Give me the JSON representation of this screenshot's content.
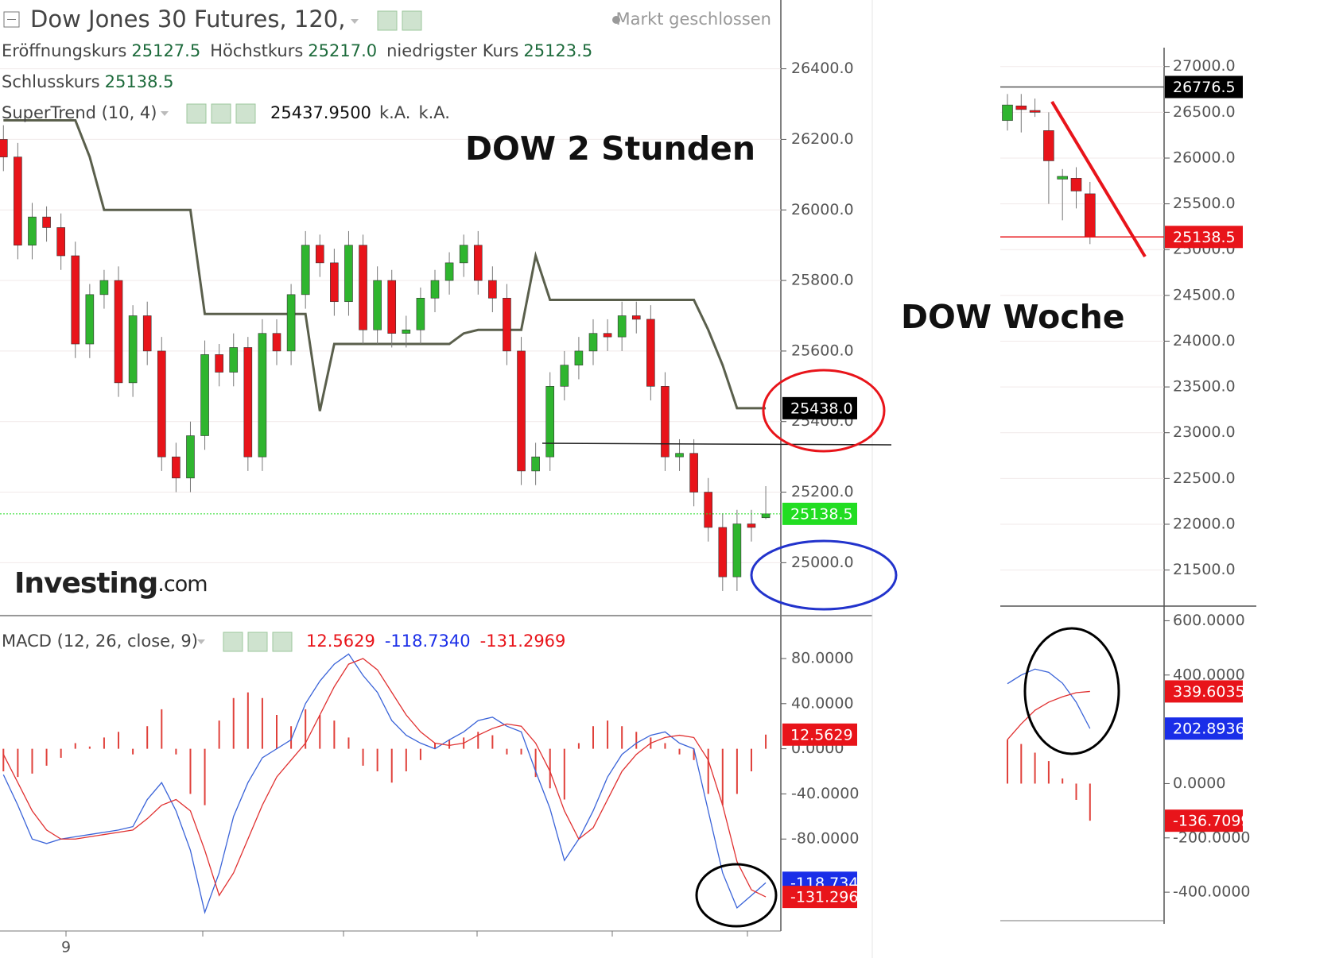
{
  "header": {
    "title": "Dow Jones 30 Futures, 120,",
    "status": "Markt geschlossen",
    "ohlc": [
      {
        "label": "Eröffnungskurs",
        "value": "25127.5"
      },
      {
        "label": "Höchstkurs",
        "value": "25217.0"
      },
      {
        "label": "niedrigster Kurs",
        "value": "25123.5"
      },
      {
        "label": "Schlusskurs",
        "value": "25138.5"
      }
    ],
    "logo": "Investing",
    "logo_suffix": ".com"
  },
  "annotations": [
    "DOW 2 Stunden",
    "DOW Woche"
  ],
  "chart_data": [
    {
      "type": "candlestick",
      "ylim": [
        24850,
        26595
      ],
      "grid": true,
      "up_color": "#2fb52f",
      "down_color": "#e8141a",
      "yticks": [
        {
          "value": 25000,
          "label": "25000.0"
        },
        {
          "value": 25200,
          "label": "25200.0"
        },
        {
          "value": 25400,
          "label": "25400.0"
        },
        {
          "value": 25600,
          "label": "25600.0"
        },
        {
          "value": 25800,
          "label": "25800.0"
        },
        {
          "value": 26000,
          "label": "26000.0"
        },
        {
          "value": 26200,
          "label": "26200.0"
        },
        {
          "value": 26400,
          "label": "26400.0"
        }
      ],
      "open": [
        26200,
        26150,
        25900,
        25980,
        25950,
        25870,
        25620,
        25760,
        25800,
        25510,
        25700,
        25600,
        25300,
        25240,
        25360,
        25590,
        25540,
        25610,
        25300,
        25650,
        25600,
        25760,
        25900,
        25850,
        25740,
        25900,
        25660,
        25800,
        25650,
        25660,
        25750,
        25800,
        25850,
        25900,
        25800,
        25750,
        25600,
        25260,
        25300,
        25500,
        25560,
        25600,
        25650,
        25640,
        25700,
        25690,
        25500,
        25300,
        25310,
        25200,
        25100,
        24960,
        25110,
        25127.5
      ],
      "high": [
        26240,
        26190,
        26020,
        26010,
        25990,
        25910,
        25790,
        25830,
        25840,
        25730,
        25740,
        25640,
        25340,
        25400,
        25630,
        25620,
        25650,
        25640,
        25690,
        25690,
        25790,
        25940,
        25930,
        25890,
        25940,
        25930,
        25840,
        25830,
        25700,
        25780,
        25830,
        25880,
        25930,
        25940,
        25840,
        25790,
        25640,
        25340,
        25540,
        25600,
        25640,
        25690,
        25690,
        25740,
        25740,
        25730,
        25540,
        25350,
        25350,
        25240,
        25140,
        25150,
        25150,
        25217
      ],
      "low": [
        26110,
        25860,
        25860,
        25910,
        25830,
        25580,
        25580,
        25720,
        25470,
        25470,
        25560,
        25260,
        25200,
        25200,
        25320,
        25500,
        25500,
        25260,
        25260,
        25560,
        25560,
        25720,
        25810,
        25700,
        25700,
        25620,
        25620,
        25610,
        25610,
        25620,
        25710,
        25760,
        25810,
        25760,
        25710,
        25560,
        25220,
        25220,
        25260,
        25460,
        25520,
        25560,
        25600,
        25600,
        25650,
        25460,
        25260,
        25260,
        25160,
        25060,
        24920,
        24920,
        25060,
        25123.5
      ],
      "close": [
        26150,
        25900,
        25980,
        25950,
        25870,
        25620,
        25760,
        25800,
        25510,
        25700,
        25600,
        25300,
        25240,
        25360,
        25590,
        25540,
        25610,
        25300,
        25650,
        25600,
        25760,
        25900,
        25850,
        25740,
        25900,
        25660,
        25800,
        25650,
        25660,
        25750,
        25800,
        25850,
        25900,
        25800,
        25750,
        25600,
        25260,
        25300,
        25500,
        25560,
        25600,
        25650,
        25640,
        25700,
        25690,
        25500,
        25300,
        25310,
        25200,
        25100,
        24960,
        25110,
        25100,
        25138.5
      ],
      "series": [
        {
          "name": "SuperTrend (10, 4)",
          "color": "#5a5f4c",
          "values": [
            26254,
            26254,
            26254,
            26254,
            26254,
            26254,
            26150,
            26000,
            26000,
            26000,
            26000,
            26000,
            26000,
            26000,
            25705,
            25705,
            25705,
            25705,
            25705,
            25705,
            25705,
            25705,
            25430,
            25620,
            25620,
            25620,
            25620,
            25620,
            25620,
            25620,
            25620,
            25620,
            25650,
            25660,
            25660,
            25660,
            25660,
            25870,
            25745,
            25745,
            25745,
            25745,
            25745,
            25745,
            25745,
            25745,
            25745,
            25745,
            25745,
            25660,
            25560,
            25438,
            25438,
            25438
          ]
        }
      ],
      "legend_values": [
        "25437.9500",
        "k.A.",
        "k.A."
      ],
      "flags": [
        {
          "value": 25438.0,
          "label": "25438.0",
          "color": "#000000"
        },
        {
          "value": 25138.5,
          "label": "25138.5",
          "color": "#22dd22",
          "line": "dotted"
        }
      ]
    },
    {
      "type": "macd",
      "ylim": [
        -161.5,
        116.6
      ],
      "grid": false,
      "hist_color": "#e0413b",
      "legend_title": "MACD (12, 26, close, 9)",
      "legend_values": [
        "12.5629",
        "-118.7340",
        "-131.2969"
      ],
      "yticks": [
        {
          "value": 80,
          "label": "80.0000"
        },
        {
          "value": 40,
          "label": "40.0000"
        },
        {
          "value": 0,
          "label": "0.0000"
        },
        {
          "value": -40,
          "label": "-40.0000"
        },
        {
          "value": -80,
          "label": "-80.0000"
        }
      ],
      "xticks": [
        {
          "value": 4.35,
          "label": "9"
        }
      ],
      "histogram": [
        -20,
        -25,
        -22,
        -15,
        -8,
        5,
        2,
        10,
        15,
        -5,
        20,
        35,
        -5,
        -40,
        -50,
        25,
        45,
        50,
        45,
        30,
        20,
        35,
        30,
        25,
        10,
        -15,
        -20,
        -30,
        -20,
        -10,
        5,
        8,
        10,
        15,
        12,
        -5,
        -5,
        -25,
        -35,
        -45,
        5,
        20,
        25,
        20,
        15,
        10,
        5,
        -5,
        -10,
        -40,
        -50,
        -40,
        -20,
        12.5629
      ],
      "series": [
        {
          "color": "#3a63d8",
          "values": [
            -23,
            -50,
            -80,
            -84,
            -80,
            -78,
            -76,
            -74,
            -72,
            -69,
            -45,
            -30,
            -55,
            -90,
            -145,
            -110,
            -60,
            -30,
            -8,
            0,
            8,
            40,
            60,
            75,
            84,
            65,
            50,
            25,
            12,
            5,
            0,
            8,
            15,
            25,
            28,
            20,
            15,
            -20,
            -53,
            -99,
            -80,
            -55,
            -25,
            -5,
            5,
            12,
            15,
            5,
            0,
            -55,
            -110,
            -141,
            -130,
            -118.734
          ]
        },
        {
          "color": "#e03030",
          "values": [
            -5,
            -30,
            -55,
            -72,
            -80,
            -80,
            -78,
            -76,
            -74,
            -72,
            -62,
            -50,
            -45,
            -55,
            -90,
            -130,
            -110,
            -80,
            -50,
            -25,
            -10,
            5,
            30,
            55,
            75,
            80,
            70,
            50,
            30,
            15,
            5,
            3,
            5,
            12,
            18,
            22,
            20,
            5,
            -20,
            -55,
            -80,
            -70,
            -45,
            -20,
            -5,
            5,
            10,
            12,
            10,
            -10,
            -50,
            -100,
            -125,
            -131.2969
          ]
        }
      ],
      "flags": [
        {
          "value": 12.5629,
          "label": "12.5629",
          "color": "#e8141a"
        },
        {
          "value": -118.734,
          "label": "-118.7340",
          "color": "#1a2ee8"
        },
        {
          "value": -131.2969,
          "label": "-131.2969",
          "color": "#e8141a"
        }
      ]
    },
    {
      "type": "candlestick",
      "ylim": [
        21106,
        27206
      ],
      "grid": true,
      "up_color": "#2fb52f",
      "down_color": "#e8141a",
      "yticks": [
        {
          "value": 21500,
          "label": "21500.0"
        },
        {
          "value": 22000,
          "label": "22000.0"
        },
        {
          "value": 22500,
          "label": "22500.0"
        },
        {
          "value": 23000,
          "label": "23000.0"
        },
        {
          "value": 23500,
          "label": "23500.0"
        },
        {
          "value": 24000,
          "label": "24000.0"
        },
        {
          "value": 24500,
          "label": "24500.0"
        },
        {
          "value": 25000,
          "label": "25000.0"
        },
        {
          "value": 25500,
          "label": "25500.0"
        },
        {
          "value": 26000,
          "label": "26000.0"
        },
        {
          "value": 26500,
          "label": "26500.0"
        },
        {
          "value": 27000,
          "label": "27000.0"
        }
      ],
      "open": [
        26410,
        26570,
        26520,
        26300,
        25770,
        25780,
        25610
      ],
      "high": [
        26700,
        26700,
        26650,
        26500,
        25880,
        25900,
        25740
      ],
      "low": [
        26300,
        26280,
        26450,
        25500,
        25320,
        25450,
        25060
      ],
      "close": [
        26580,
        26530,
        26500,
        25970,
        25800,
        25640,
        25138.5
      ],
      "series": [],
      "flags": [
        {
          "value": 26776.5,
          "label": "26776.5",
          "color": "#000000",
          "line": "solid"
        },
        {
          "value": 25138.5,
          "label": "25138.5",
          "color": "#e8141a",
          "line": "solid"
        }
      ]
    },
    {
      "type": "macd",
      "ylim": [
        -505,
        654
      ],
      "grid": false,
      "hist_color": "#e0413b",
      "yticks": [
        {
          "value": 600,
          "label": "600.0000"
        },
        {
          "value": 400,
          "label": "400.0000"
        },
        {
          "value": 0,
          "label": "0.0000"
        },
        {
          "value": -200,
          "label": "-200.0000"
        },
        {
          "value": -400,
          "label": "-400.0000"
        }
      ],
      "histogram": [
        162,
        146,
        114,
        83,
        19,
        -60,
        -136.7099
      ],
      "series": [
        {
          "color": "#3a63d8",
          "values": [
            368,
            400,
            422,
            410,
            370,
            300,
            202.8936
          ]
        },
        {
          "color": "#e03030",
          "values": [
            162,
            220,
            270,
            300,
            320,
            335,
            339.6035
          ]
        }
      ],
      "flags": [
        {
          "value": 339.6035,
          "label": "339.6035",
          "color": "#e8141a"
        },
        {
          "value": 202.8936,
          "label": "202.8936",
          "color": "#1a2ee8"
        },
        {
          "value": -136.7099,
          "label": "-136.7099",
          "color": "#e8141a"
        }
      ]
    }
  ]
}
